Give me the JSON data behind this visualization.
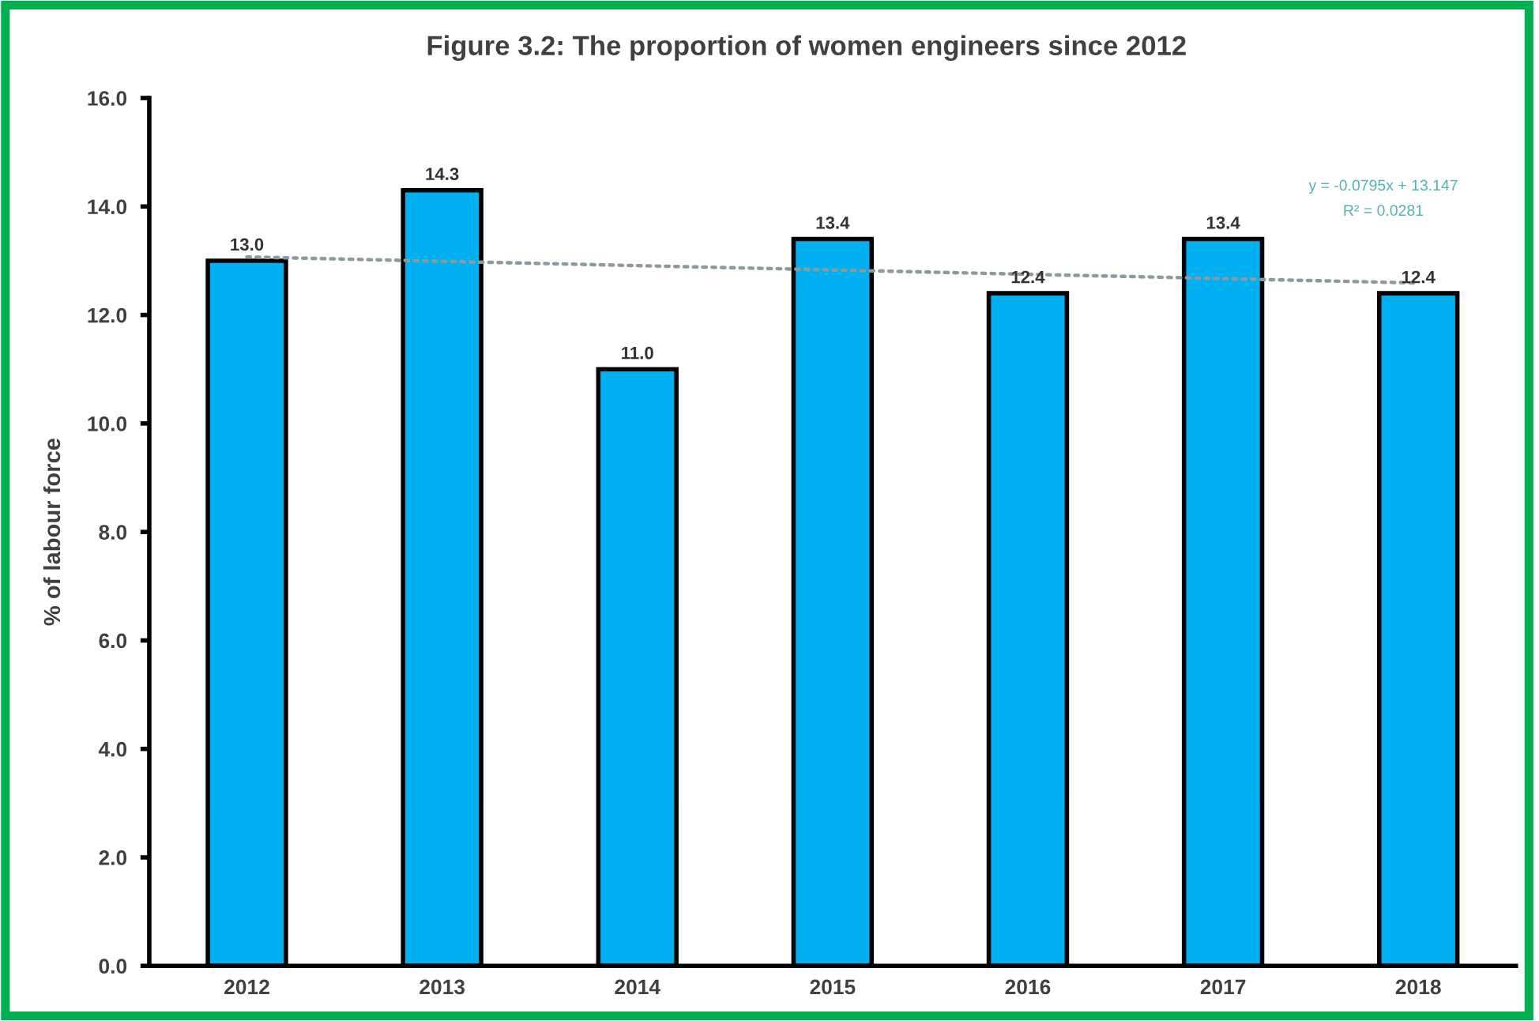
{
  "chart_data": {
    "type": "bar",
    "title": "Figure 3.2: The proportion of women engineers since 2012",
    "ylabel": "% of labour force",
    "categories": [
      "2012",
      "2013",
      "2014",
      "2015",
      "2016",
      "2017",
      "2018"
    ],
    "series": [
      {
        "color": "#00b0f0",
        "values": [
          13.0,
          14.3,
          11.0,
          13.4,
          12.4,
          13.4,
          12.4
        ],
        "value_labels": [
          "13.0",
          "14.3",
          "11.0",
          "13.4",
          "12.4",
          "13.4",
          "12.4"
        ]
      },
      {
        "type": "line",
        "color": "#8c9aa0",
        "line_style": "dotted",
        "marker": "none",
        "values": [
          13.07,
          12.99,
          12.91,
          12.83,
          12.75,
          12.67,
          12.59
        ]
      }
    ],
    "ylim": [
      0,
      16
    ],
    "yticks": [
      {
        "value": 0,
        "label": "0.0"
      },
      {
        "value": 2,
        "label": "2.0"
      },
      {
        "value": 4,
        "label": "4.0"
      },
      {
        "value": 6,
        "label": "6.0"
      },
      {
        "value": 8,
        "label": "8.0"
      },
      {
        "value": 10,
        "label": "10.0"
      },
      {
        "value": 12,
        "label": "12.0"
      },
      {
        "value": 14,
        "label": "14.0"
      },
      {
        "value": 16,
        "label": "16.0"
      }
    ],
    "annotations": [
      "y = -0.0795x + 13.147",
      "R² = 0.0281"
    ],
    "grid": false,
    "legend": false
  }
}
